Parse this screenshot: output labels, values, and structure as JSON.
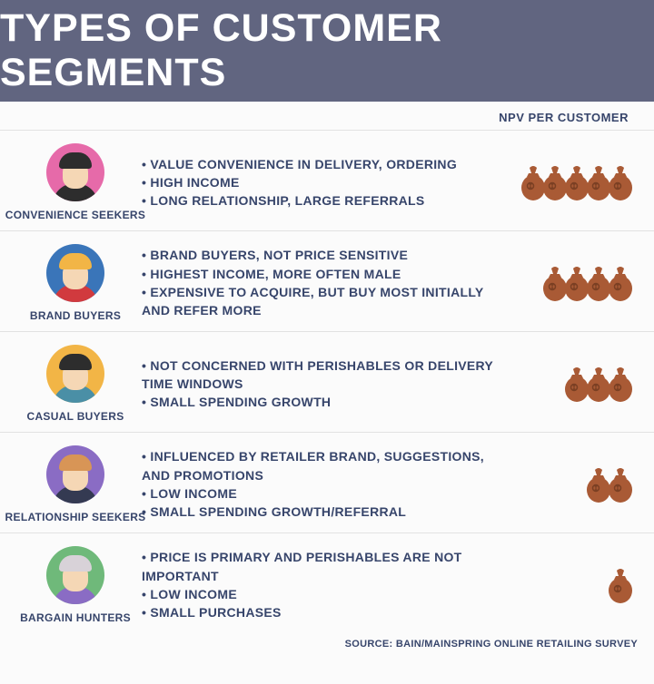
{
  "title": "TYPES OF CUSTOMER SEGMENTS",
  "npv_label": "NPV PER CUSTOMER",
  "source": "SOURCE: BAIN/MAINSPRING ONLINE RETAILING SURVEY",
  "bag_color": "#a95a35",
  "rows": [
    {
      "label": "CONVENIENCE SEEKERS",
      "avatar_bg": "#e66aa9",
      "hair_color": "#2d2d2d",
      "skin": "#f5d7b5",
      "shirt": "#2d2d2d",
      "bullets": [
        "Value convenience in delivery, ordering",
        "High income",
        "Long relationship, large referrals"
      ],
      "bags": 5
    },
    {
      "label": "BRAND BUYERS",
      "avatar_bg": "#3a75b9",
      "hair_color": "#f2b546",
      "skin": "#f5d7b5",
      "shirt": "#d13a3e",
      "bullets": [
        "Brand buyers, not price sensitive",
        "Highest income, more often male",
        "Expensive to acquire, but buy most initially and refer more"
      ],
      "bags": 4
    },
    {
      "label": "CASUAL BUYERS",
      "avatar_bg": "#f2b546",
      "hair_color": "#2d2d2d",
      "skin": "#f5d7b5",
      "shirt": "#4a8fa6",
      "bullets": [
        "Not concerned with perishables or delivery time windows",
        "Small spending growth"
      ],
      "bags": 3
    },
    {
      "label": "RELATIONSHIP SEEKERS",
      "avatar_bg": "#8a6cc4",
      "hair_color": "#d89556",
      "skin": "#f5d7b5",
      "shirt": "#343a52",
      "bullets": [
        "Influenced by retailer brand, suggestions, and promotions",
        "Low income",
        "Small spending growth/referral"
      ],
      "bags": 2
    },
    {
      "label": "BARGAIN HUNTERS",
      "avatar_bg": "#6fb97a",
      "hair_color": "#d8d2d8",
      "skin": "#f5d7b5",
      "shirt": "#8a6cc4",
      "bullets": [
        "Price is primary and perishables are not important",
        "Low income",
        "Small purchases"
      ],
      "bags": 1
    }
  ]
}
